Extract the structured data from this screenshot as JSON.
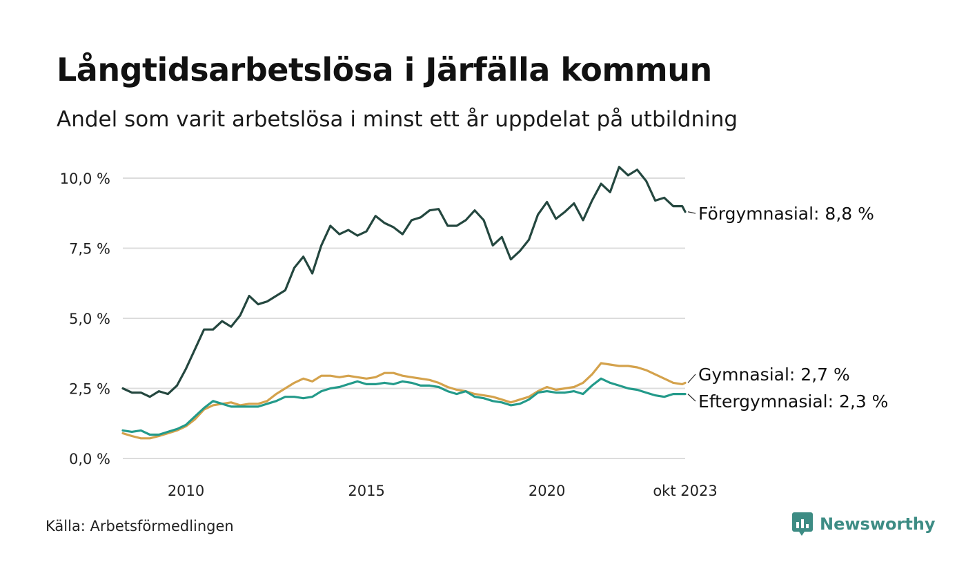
{
  "title": "Långtidsarbetslösa i Järfälla kommun",
  "subtitle": "Andel som varit arbetslösa i minst ett år uppdelat på utbildning",
  "source": "Källa: Arbetsförmedlingen",
  "brand": {
    "name": "Newsworthy",
    "icon": "newsworthy-logo-icon",
    "color": "#3d8c84"
  },
  "chart_data": {
    "type": "line",
    "x_start": 2008.25,
    "x_end": 2023.83,
    "ylim": [
      0,
      10
    ],
    "yticks": [
      {
        "value": 0,
        "label": "0,0 %"
      },
      {
        "value": 2.5,
        "label": "2,5 %"
      },
      {
        "value": 5,
        "label": "5,0 %"
      },
      {
        "value": 7.5,
        "label": "7,5 %"
      },
      {
        "value": 10,
        "label": "10,0 %"
      }
    ],
    "xticks": [
      {
        "value": 2010,
        "label": "2010"
      },
      {
        "value": 2015,
        "label": "2015"
      },
      {
        "value": 2020,
        "label": "2020"
      },
      {
        "value": 2023.83,
        "label": "okt 2023"
      }
    ],
    "grid": true,
    "series": [
      {
        "name": "Förgymnasial",
        "label": "Förgymnasial: 8,8 %",
        "color": "#24473f",
        "points": [
          [
            2008.25,
            2.5
          ],
          [
            2008.5,
            2.35
          ],
          [
            2008.75,
            2.35
          ],
          [
            2009.0,
            2.2
          ],
          [
            2009.25,
            2.4
          ],
          [
            2009.5,
            2.3
          ],
          [
            2009.75,
            2.6
          ],
          [
            2010.0,
            3.2
          ],
          [
            2010.25,
            3.9
          ],
          [
            2010.5,
            4.6
          ],
          [
            2010.75,
            4.6
          ],
          [
            2011.0,
            4.9
          ],
          [
            2011.25,
            4.7
          ],
          [
            2011.5,
            5.1
          ],
          [
            2011.75,
            5.8
          ],
          [
            2012.0,
            5.5
          ],
          [
            2012.25,
            5.6
          ],
          [
            2012.5,
            5.8
          ],
          [
            2012.75,
            6.0
          ],
          [
            2013.0,
            6.8
          ],
          [
            2013.25,
            7.2
          ],
          [
            2013.5,
            6.6
          ],
          [
            2013.75,
            7.6
          ],
          [
            2014.0,
            8.3
          ],
          [
            2014.25,
            8.0
          ],
          [
            2014.5,
            8.15
          ],
          [
            2014.75,
            7.95
          ],
          [
            2015.0,
            8.1
          ],
          [
            2015.25,
            8.65
          ],
          [
            2015.5,
            8.4
          ],
          [
            2015.75,
            8.25
          ],
          [
            2016.0,
            8.0
          ],
          [
            2016.25,
            8.5
          ],
          [
            2016.5,
            8.6
          ],
          [
            2016.75,
            8.85
          ],
          [
            2017.0,
            8.9
          ],
          [
            2017.25,
            8.3
          ],
          [
            2017.5,
            8.3
          ],
          [
            2017.75,
            8.5
          ],
          [
            2018.0,
            8.85
          ],
          [
            2018.25,
            8.5
          ],
          [
            2018.5,
            7.6
          ],
          [
            2018.75,
            7.9
          ],
          [
            2019.0,
            7.1
          ],
          [
            2019.25,
            7.4
          ],
          [
            2019.5,
            7.8
          ],
          [
            2019.75,
            8.7
          ],
          [
            2020.0,
            9.15
          ],
          [
            2020.25,
            8.55
          ],
          [
            2020.5,
            8.8
          ],
          [
            2020.75,
            9.1
          ],
          [
            2021.0,
            8.5
          ],
          [
            2021.25,
            9.2
          ],
          [
            2021.5,
            9.8
          ],
          [
            2021.75,
            9.5
          ],
          [
            2022.0,
            10.4
          ],
          [
            2022.25,
            10.1
          ],
          [
            2022.5,
            10.3
          ],
          [
            2022.75,
            9.9
          ],
          [
            2023.0,
            9.2
          ],
          [
            2023.25,
            9.3
          ],
          [
            2023.5,
            9.0
          ],
          [
            2023.75,
            9.0
          ],
          [
            2023.83,
            8.8
          ]
        ]
      },
      {
        "name": "Gymnasial",
        "label": "Gymnasial: 2,7 %",
        "color": "#d4a24c",
        "points": [
          [
            2008.25,
            0.9
          ],
          [
            2008.5,
            0.8
          ],
          [
            2008.75,
            0.72
          ],
          [
            2009.0,
            0.72
          ],
          [
            2009.25,
            0.8
          ],
          [
            2009.5,
            0.9
          ],
          [
            2009.75,
            1.0
          ],
          [
            2010.0,
            1.15
          ],
          [
            2010.25,
            1.4
          ],
          [
            2010.5,
            1.75
          ],
          [
            2010.75,
            1.9
          ],
          [
            2011.0,
            1.95
          ],
          [
            2011.25,
            2.0
          ],
          [
            2011.5,
            1.9
          ],
          [
            2011.75,
            1.95
          ],
          [
            2012.0,
            1.95
          ],
          [
            2012.25,
            2.05
          ],
          [
            2012.5,
            2.3
          ],
          [
            2012.75,
            2.5
          ],
          [
            2013.0,
            2.7
          ],
          [
            2013.25,
            2.85
          ],
          [
            2013.5,
            2.75
          ],
          [
            2013.75,
            2.95
          ],
          [
            2014.0,
            2.95
          ],
          [
            2014.25,
            2.9
          ],
          [
            2014.5,
            2.95
          ],
          [
            2014.75,
            2.9
          ],
          [
            2015.0,
            2.85
          ],
          [
            2015.25,
            2.9
          ],
          [
            2015.5,
            3.05
          ],
          [
            2015.75,
            3.05
          ],
          [
            2016.0,
            2.95
          ],
          [
            2016.25,
            2.9
          ],
          [
            2016.5,
            2.85
          ],
          [
            2016.75,
            2.8
          ],
          [
            2017.0,
            2.7
          ],
          [
            2017.25,
            2.55
          ],
          [
            2017.5,
            2.45
          ],
          [
            2017.75,
            2.4
          ],
          [
            2018.0,
            2.3
          ],
          [
            2018.25,
            2.25
          ],
          [
            2018.5,
            2.2
          ],
          [
            2018.75,
            2.1
          ],
          [
            2019.0,
            2.0
          ],
          [
            2019.25,
            2.1
          ],
          [
            2019.5,
            2.2
          ],
          [
            2019.75,
            2.4
          ],
          [
            2020.0,
            2.55
          ],
          [
            2020.25,
            2.45
          ],
          [
            2020.5,
            2.5
          ],
          [
            2020.75,
            2.55
          ],
          [
            2021.0,
            2.7
          ],
          [
            2021.25,
            3.0
          ],
          [
            2021.5,
            3.4
          ],
          [
            2021.75,
            3.35
          ],
          [
            2022.0,
            3.3
          ],
          [
            2022.25,
            3.3
          ],
          [
            2022.5,
            3.25
          ],
          [
            2022.75,
            3.15
          ],
          [
            2023.0,
            3.0
          ],
          [
            2023.25,
            2.85
          ],
          [
            2023.5,
            2.7
          ],
          [
            2023.75,
            2.65
          ],
          [
            2023.83,
            2.7
          ]
        ]
      },
      {
        "name": "Eftergymnasial",
        "label": "Eftergymnasial: 2,3 %",
        "color": "#239a8a",
        "points": [
          [
            2008.25,
            1.0
          ],
          [
            2008.5,
            0.95
          ],
          [
            2008.75,
            1.0
          ],
          [
            2009.0,
            0.85
          ],
          [
            2009.25,
            0.85
          ],
          [
            2009.5,
            0.95
          ],
          [
            2009.75,
            1.05
          ],
          [
            2010.0,
            1.2
          ],
          [
            2010.25,
            1.5
          ],
          [
            2010.5,
            1.8
          ],
          [
            2010.75,
            2.05
          ],
          [
            2011.0,
            1.95
          ],
          [
            2011.25,
            1.85
          ],
          [
            2011.5,
            1.85
          ],
          [
            2011.75,
            1.85
          ],
          [
            2012.0,
            1.85
          ],
          [
            2012.25,
            1.95
          ],
          [
            2012.5,
            2.05
          ],
          [
            2012.75,
            2.2
          ],
          [
            2013.0,
            2.2
          ],
          [
            2013.25,
            2.15
          ],
          [
            2013.5,
            2.2
          ],
          [
            2013.75,
            2.4
          ],
          [
            2014.0,
            2.5
          ],
          [
            2014.25,
            2.55
          ],
          [
            2014.5,
            2.65
          ],
          [
            2014.75,
            2.75
          ],
          [
            2015.0,
            2.65
          ],
          [
            2015.25,
            2.65
          ],
          [
            2015.5,
            2.7
          ],
          [
            2015.75,
            2.65
          ],
          [
            2016.0,
            2.75
          ],
          [
            2016.25,
            2.7
          ],
          [
            2016.5,
            2.6
          ],
          [
            2016.75,
            2.6
          ],
          [
            2017.0,
            2.55
          ],
          [
            2017.25,
            2.4
          ],
          [
            2017.5,
            2.3
          ],
          [
            2017.75,
            2.4
          ],
          [
            2018.0,
            2.2
          ],
          [
            2018.25,
            2.15
          ],
          [
            2018.5,
            2.05
          ],
          [
            2018.75,
            2.0
          ],
          [
            2019.0,
            1.9
          ],
          [
            2019.25,
            1.95
          ],
          [
            2019.5,
            2.1
          ],
          [
            2019.75,
            2.35
          ],
          [
            2020.0,
            2.4
          ],
          [
            2020.25,
            2.35
          ],
          [
            2020.5,
            2.35
          ],
          [
            2020.75,
            2.4
          ],
          [
            2021.0,
            2.3
          ],
          [
            2021.25,
            2.6
          ],
          [
            2021.5,
            2.85
          ],
          [
            2021.75,
            2.7
          ],
          [
            2022.0,
            2.6
          ],
          [
            2022.25,
            2.5
          ],
          [
            2022.5,
            2.45
          ],
          [
            2022.75,
            2.35
          ],
          [
            2023.0,
            2.25
          ],
          [
            2023.25,
            2.2
          ],
          [
            2023.5,
            2.3
          ],
          [
            2023.75,
            2.3
          ],
          [
            2023.83,
            2.3
          ]
        ]
      }
    ]
  }
}
